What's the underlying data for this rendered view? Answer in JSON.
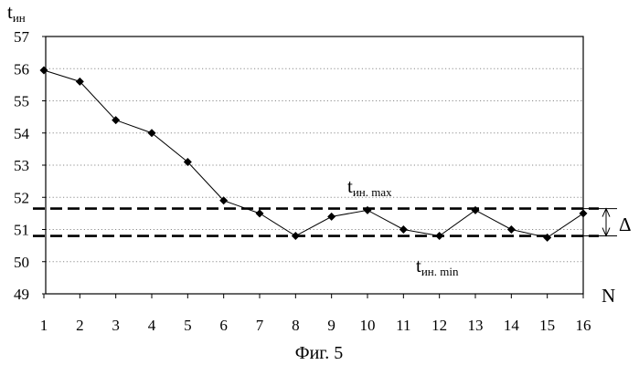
{
  "chart_data": {
    "type": "line",
    "ylabel_main": "t",
    "ylabel_sub": "ин",
    "xlabel": "N",
    "caption": "Фиг. 5",
    "ylim": [
      49,
      57
    ],
    "y_ticks": [
      49,
      50,
      51,
      52,
      53,
      54,
      55,
      56,
      57
    ],
    "x": [
      1,
      2,
      3,
      4,
      5,
      6,
      7,
      8,
      9,
      10,
      11,
      12,
      13,
      14,
      15,
      16
    ],
    "values": [
      55.95,
      55.6,
      54.4,
      54.0,
      53.1,
      51.9,
      51.5,
      50.8,
      51.4,
      51.6,
      51.0,
      50.8,
      51.6,
      51.0,
      50.75,
      51.5
    ],
    "grid": "horizontal dotted",
    "reference_lines": [
      {
        "label_main": "t",
        "label_sub": "ин. max",
        "value": 51.65
      },
      {
        "label_main": "t",
        "label_sub": "ин. min",
        "value": 50.8
      }
    ],
    "delta_label": "Δ"
  }
}
